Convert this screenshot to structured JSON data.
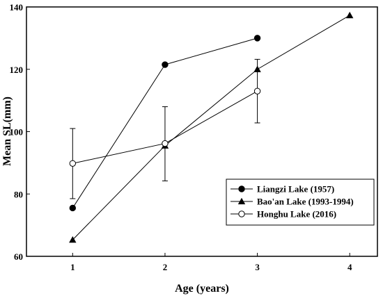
{
  "chart_data": {
    "type": "line",
    "xlabel": "Age (years)",
    "ylabel": "Mean SL(mm)",
    "xlim": [
      0.5,
      4.3
    ],
    "ylim": [
      60,
      140
    ],
    "xticks": [
      1,
      2,
      3,
      4
    ],
    "yticks": [
      60,
      80,
      100,
      120,
      140
    ],
    "grid": false,
    "legend_position": "bottom-right",
    "series": [
      {
        "name": "Liangzi Lake (1957)",
        "marker": "filled-circle",
        "x": [
          1,
          2,
          3
        ],
        "y": [
          75.5,
          121.5,
          130
        ]
      },
      {
        "name": "Bao'an Lake (1993-1994)",
        "marker": "filled-triangle",
        "x": [
          1,
          2,
          3,
          4
        ],
        "y": [
          65.3,
          95.5,
          120,
          137.3
        ]
      },
      {
        "name": "Honghu Lake (2016)",
        "marker": "open-circle",
        "x": [
          1,
          2,
          3
        ],
        "y": [
          89.8,
          96.2,
          113
        ],
        "error_low": [
          78.5,
          84.2,
          102.8
        ],
        "error_high": [
          101,
          108,
          123.2
        ]
      }
    ]
  }
}
